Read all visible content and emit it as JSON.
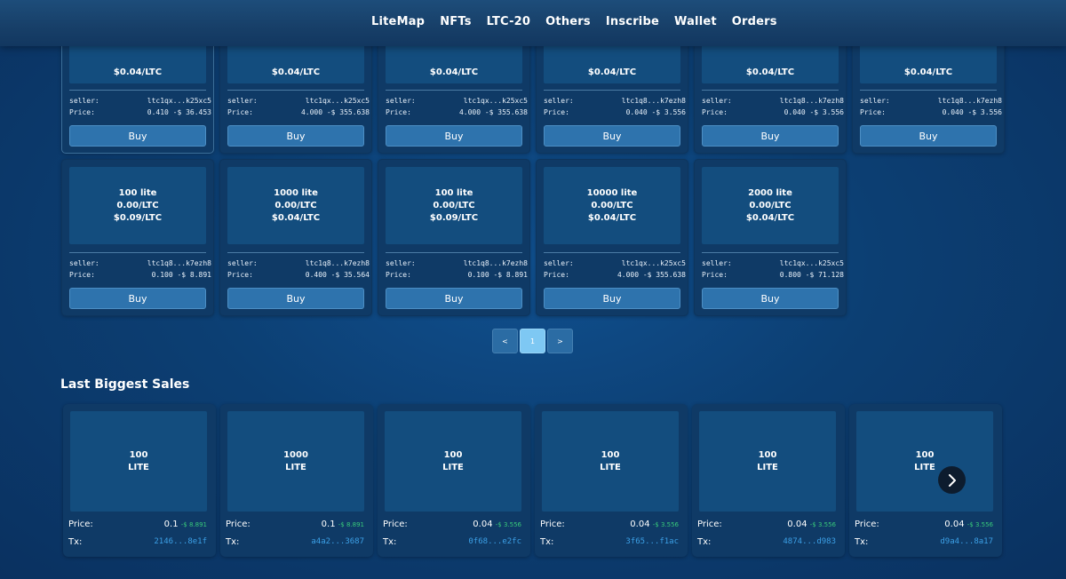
{
  "nav": [
    "LiteMap",
    "NFTs",
    "LTC-20",
    "Others",
    "Inscribe",
    "Wallet",
    "Orders"
  ],
  "listings_row1": [
    {
      "price_ltc": "$0.04/LTC",
      "seller": "ltc1qx...k25xc5",
      "price": "0.410 -$ 36.453",
      "buy": "Buy"
    },
    {
      "price_ltc": "$0.04/LTC",
      "seller": "ltc1qx...k25xc5",
      "price": "4.000 -$ 355.638",
      "buy": "Buy"
    },
    {
      "price_ltc": "$0.04/LTC",
      "seller": "ltc1qx...k25xc5",
      "price": "4.000 -$ 355.638",
      "buy": "Buy"
    },
    {
      "price_ltc": "$0.04/LTC",
      "seller": "ltc1q8...k7ezh8",
      "price": "0.040 -$ 3.556",
      "buy": "Buy"
    },
    {
      "price_ltc": "$0.04/LTC",
      "seller": "ltc1q8...k7ezh8",
      "price": "0.040 -$ 3.556",
      "buy": "Buy"
    },
    {
      "price_ltc": "$0.04/LTC",
      "seller": "ltc1q8...k7ezh8",
      "price": "0.040 -$ 3.556",
      "buy": "Buy"
    }
  ],
  "listings_row2": [
    {
      "amount": "100 lite",
      "rate": "0.00/LTC",
      "price_ltc": "$0.09/LTC",
      "seller": "ltc1q8...k7ezh8",
      "price": "0.100 -$ 8.891",
      "buy": "Buy"
    },
    {
      "amount": "1000 lite",
      "rate": "0.00/LTC",
      "price_ltc": "$0.04/LTC",
      "seller": "ltc1q8...k7ezh8",
      "price": "0.400 -$ 35.564",
      "buy": "Buy"
    },
    {
      "amount": "100 lite",
      "rate": "0.00/LTC",
      "price_ltc": "$0.09/LTC",
      "seller": "ltc1q8...k7ezh8",
      "price": "0.100 -$ 8.891",
      "buy": "Buy"
    },
    {
      "amount": "10000 lite",
      "rate": "0.00/LTC",
      "price_ltc": "$0.04/LTC",
      "seller": "ltc1qx...k25xc5",
      "price": "4.000 -$ 355.638",
      "buy": "Buy"
    },
    {
      "amount": "2000 lite",
      "rate": "0.00/LTC",
      "price_ltc": "$0.04/LTC",
      "seller": "ltc1qx...k25xc5",
      "price": "0.800 -$ 71.128",
      "buy": "Buy"
    }
  ],
  "labels": {
    "seller": "seller:",
    "price": "Price:",
    "sale_price": "Price:",
    "tx": "Tx:"
  },
  "pagination": {
    "prev": "<",
    "current": "1",
    "next": ">"
  },
  "sales_title": "Last Biggest Sales",
  "sales": [
    {
      "amount": "100",
      "ticker": "LITE",
      "price": "0.1",
      "usd": "-$ 8.891",
      "tx": "2146...8e1f"
    },
    {
      "amount": "1000",
      "ticker": "LITE",
      "price": "0.1",
      "usd": "-$ 8.891",
      "tx": "a4a2...3687"
    },
    {
      "amount": "100",
      "ticker": "LITE",
      "price": "0.04",
      "usd": "-$ 3.556",
      "tx": "0f68...e2fc"
    },
    {
      "amount": "100",
      "ticker": "LITE",
      "price": "0.04",
      "usd": "-$ 3.556",
      "tx": "3f65...f1ac"
    },
    {
      "amount": "100",
      "ticker": "LITE",
      "price": "0.04",
      "usd": "-$ 3.556",
      "tx": "4874...d983"
    },
    {
      "amount": "100",
      "ticker": "LITE",
      "price": "0.04",
      "usd": "-$ 3.556",
      "tx": "d9a4...8a17"
    }
  ],
  "icons": {
    "next": "chevron-right-icon"
  },
  "colors": {
    "accent": "#2e73ad",
    "usd_green": "#38c97a",
    "tx_link": "#3ca0e6",
    "page_active": "#7ec8f3"
  }
}
